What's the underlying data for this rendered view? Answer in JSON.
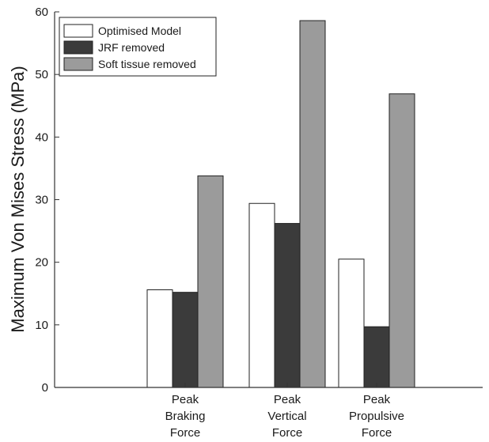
{
  "chart_data": {
    "type": "bar",
    "title": "",
    "xlabel": "",
    "ylabel": "Maximum Von Mises Stress (MPa)",
    "ylim": [
      0,
      60
    ],
    "yticks": [
      0,
      10,
      20,
      30,
      40,
      50,
      60
    ],
    "categories": [
      [
        "Peak",
        "Braking",
        "Force"
      ],
      [
        "Peak",
        "Vertical",
        "Force"
      ],
      [
        "Peak",
        "Propulsive",
        "Force"
      ]
    ],
    "series": [
      {
        "name": "Optimised Model",
        "color": "#ffffff",
        "values": [
          15.6,
          29.4,
          20.5
        ]
      },
      {
        "name": "JRF removed",
        "color": "#3b3b3b",
        "values": [
          15.2,
          26.2,
          9.7
        ]
      },
      {
        "name": "Soft tissue removed",
        "color": "#9b9b9b",
        "values": [
          33.8,
          58.6,
          46.9
        ]
      }
    ],
    "legend_position": "top-left",
    "grid": false
  }
}
